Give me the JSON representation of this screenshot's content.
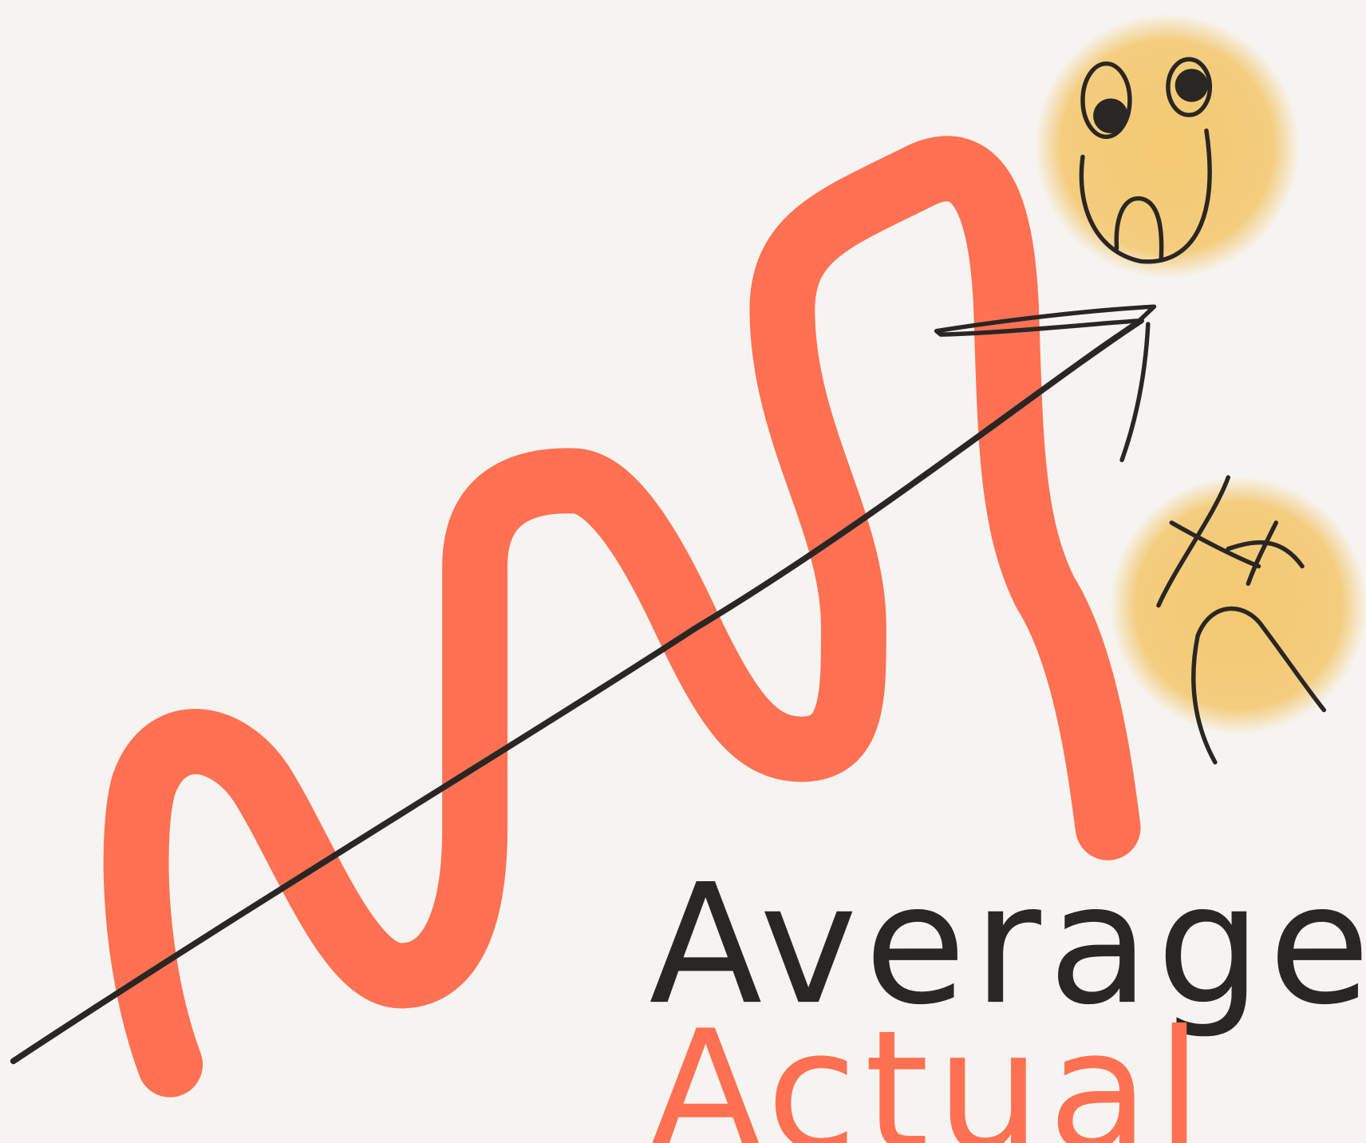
{
  "labels": {
    "average": "Average",
    "actual": "Actual"
  }
}
